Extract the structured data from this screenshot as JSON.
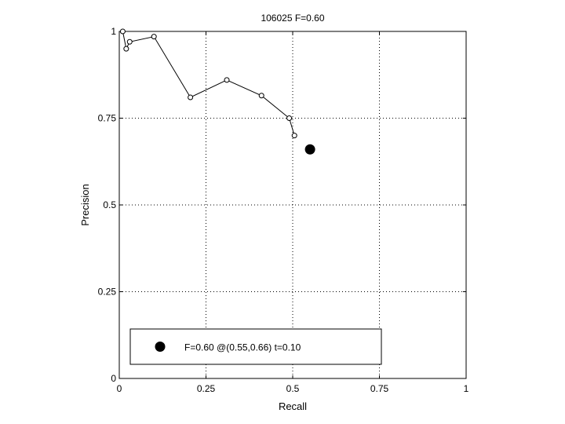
{
  "chart_data": {
    "type": "line",
    "title": "106025 F=0.60",
    "xlabel": "Recall",
    "ylabel": "Precision",
    "xlim": [
      0,
      1
    ],
    "ylim": [
      0,
      1
    ],
    "x_ticks": [
      0,
      0.25,
      0.5,
      0.75,
      1
    ],
    "y_ticks": [
      0,
      0.25,
      0.5,
      0.75,
      1
    ],
    "x_tick_labels": [
      "0",
      "0.25",
      "0.5",
      "0.75",
      "1"
    ],
    "y_tick_labels": [
      "0",
      "0.25",
      "0.5",
      "0.75",
      "1"
    ],
    "grid": true,
    "grid_style": "dotted",
    "series": [
      {
        "x": [
          0.01,
          0.02,
          0.03,
          0.1,
          0.205,
          0.31,
          0.41,
          0.49,
          0.505
        ],
        "y": [
          1.0,
          0.95,
          0.97,
          0.985,
          0.81,
          0.86,
          0.815,
          0.75,
          0.7
        ],
        "marker": "open-circle",
        "color": "#000000"
      }
    ],
    "best_point": {
      "x": 0.55,
      "y": 0.66,
      "marker": "filled-circle",
      "color": "#000000"
    },
    "legend": {
      "placement": "bottom-left",
      "entries": [
        {
          "label": "F=0.60 @(0.55,0.66) t=0.10",
          "marker": "filled-circle"
        }
      ]
    }
  }
}
